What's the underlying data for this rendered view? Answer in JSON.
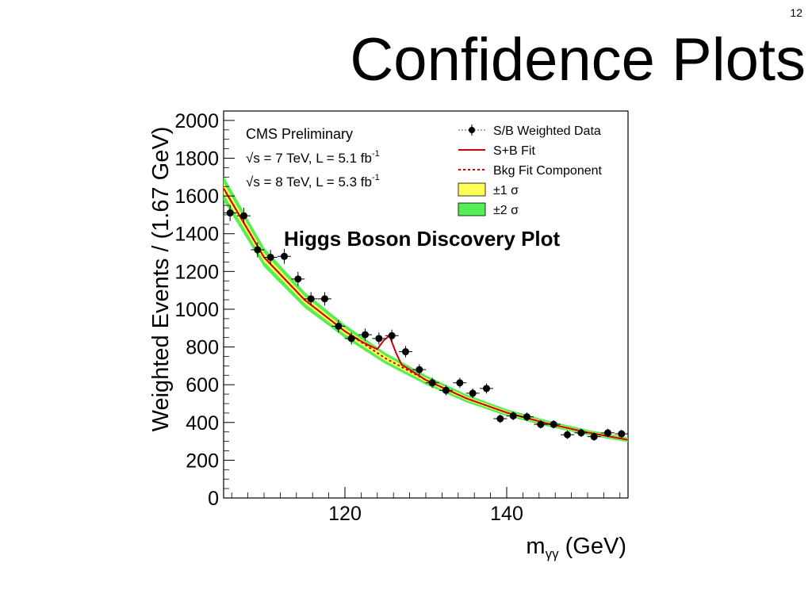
{
  "slide": {
    "page_number": "12",
    "title": "Confidence Plots",
    "caption": "Higgs Boson Discovery Plot"
  },
  "chart_data": {
    "type": "scatter",
    "title": "",
    "xlabel": "mγγ (GeV)",
    "ylabel": "Weighted Events / (1.67 GeV)",
    "xlim": [
      105,
      155
    ],
    "ylim": [
      0,
      2050
    ],
    "x_ticks": [
      120,
      140
    ],
    "y_ticks": [
      0,
      200,
      400,
      600,
      800,
      1000,
      1200,
      1400,
      1600,
      1800,
      2000
    ],
    "annotations": {
      "label": "CMS Preliminary",
      "line1": "√s = 7 TeV, L = 5.1 fb",
      "line1_sup": "-1",
      "line2": "√s = 8 TeV, L = 5.3 fb",
      "line2_sup": "-1"
    },
    "legend": {
      "placement": "top-right",
      "entries": [
        "S/B Weighted Data",
        "S+B Fit",
        "Bkg Fit Component",
        "±1 σ",
        "±2 σ"
      ]
    },
    "colors": {
      "data": "#000000",
      "fit": "#cc0000",
      "bkg": "#cc0000",
      "band1": "#ffff55",
      "band2": "#55ee55"
    },
    "series": [
      {
        "name": "S/B Weighted Data",
        "x": [
          105.8,
          107.5,
          109.2,
          110.8,
          112.5,
          114.2,
          115.8,
          117.5,
          119.2,
          120.8,
          122.5,
          124.2,
          125.8,
          127.5,
          129.2,
          130.8,
          132.5,
          134.2,
          135.8,
          137.5,
          139.2,
          140.8,
          142.5,
          144.2,
          145.8,
          147.5,
          149.2,
          150.8,
          152.5,
          154.2
        ],
        "y": [
          1510,
          1495,
          1315,
          1275,
          1280,
          1160,
          1055,
          1055,
          910,
          845,
          865,
          845,
          860,
          775,
          680,
          610,
          570,
          610,
          555,
          580,
          420,
          435,
          430,
          390,
          390,
          335,
          345,
          325,
          345,
          340
        ]
      },
      {
        "name": "S+B Fit",
        "x": [
          105,
          110,
          115,
          120,
          122,
          123,
          124,
          124.8,
          125.5,
          126.3,
          127,
          128,
          130,
          135,
          140,
          145,
          150,
          155
        ],
        "y": [
          1640,
          1275,
          1050,
          883,
          830,
          808,
          788,
          835,
          860,
          770,
          706,
          680,
          625,
          528,
          452,
          395,
          347,
          308
        ]
      },
      {
        "name": "Bkg Fit Component",
        "x": [
          105,
          110,
          115,
          120,
          125,
          130,
          135,
          140,
          145,
          150,
          155
        ],
        "y": [
          1640,
          1275,
          1050,
          883,
          740,
          625,
          528,
          452,
          395,
          347,
          308
        ]
      }
    ]
  }
}
